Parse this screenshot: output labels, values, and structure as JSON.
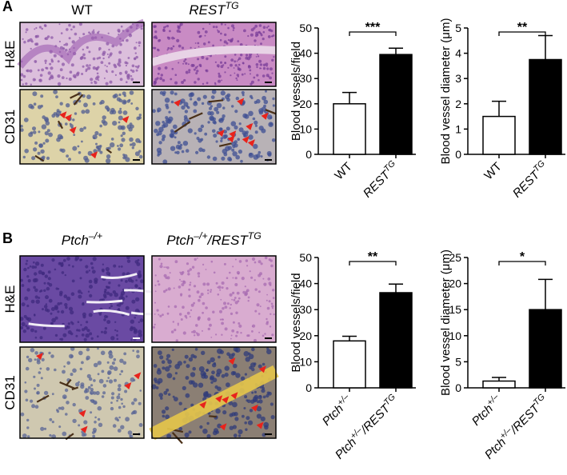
{
  "panels": [
    {
      "letter": "A",
      "columns": [
        [
          "WT"
        ],
        [
          "REST",
          "TG"
        ]
      ],
      "rows": [
        "H&E",
        "CD31"
      ]
    },
    {
      "letter": "B",
      "columns": [
        [
          "Ptch",
          "–/+"
        ],
        [
          "Ptch",
          "–/+",
          "/REST",
          "TG"
        ]
      ],
      "rows": [
        "H&E",
        "CD31"
      ]
    }
  ],
  "chart_data": [
    {
      "type": "bar",
      "y_label": "Blood vessels/field",
      "categories": [
        [
          "WT"
        ],
        [
          "REST",
          "TG"
        ]
      ],
      "values": [
        20,
        39.5
      ],
      "errors": [
        4.5,
        2.5
      ],
      "colors": [
        "#ffffff",
        "#000000"
      ],
      "ylim": [
        0,
        50
      ],
      "yticks": [
        0,
        10,
        20,
        30,
        40,
        50
      ],
      "significance": "***"
    },
    {
      "type": "bar",
      "y_label": "Blood vessel diameter (μm)",
      "categories": [
        [
          "WT"
        ],
        [
          "REST",
          "TG"
        ]
      ],
      "values": [
        1.5,
        3.75
      ],
      "errors": [
        0.6,
        0.95
      ],
      "colors": [
        "#ffffff",
        "#000000"
      ],
      "ylim": [
        0,
        5
      ],
      "yticks": [
        0,
        1,
        2,
        3,
        4,
        5
      ],
      "significance": "**"
    },
    {
      "type": "bar",
      "y_label": "Blood vessels/field",
      "categories": [
        [
          "Ptch",
          "+/–"
        ],
        [
          "Ptch",
          "+/–",
          "/REST",
          "TG"
        ]
      ],
      "values": [
        18,
        36.5
      ],
      "errors": [
        1.8,
        3.3
      ],
      "colors": [
        "#ffffff",
        "#000000"
      ],
      "ylim": [
        0,
        50
      ],
      "yticks": [
        0,
        10,
        20,
        30,
        40,
        50
      ],
      "significance": "**"
    },
    {
      "type": "bar",
      "y_label": "Blood vessel diameter (μm)",
      "categories": [
        [
          "Ptch",
          "+/–"
        ],
        [
          "Ptch",
          "+/–",
          "/REST",
          "TG"
        ]
      ],
      "values": [
        1.3,
        15
      ],
      "errors": [
        0.7,
        5.8
      ],
      "colors": [
        "#ffffff",
        "#000000"
      ],
      "ylim": [
        0,
        25
      ],
      "yticks": [
        0,
        5,
        10,
        15,
        20,
        25
      ],
      "significance": "*"
    }
  ]
}
